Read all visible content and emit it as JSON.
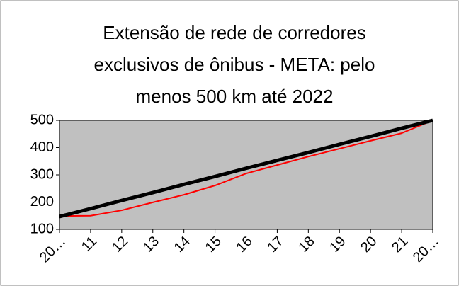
{
  "chart_data": {
    "type": "line",
    "title": [
      "Extensão de rede de corredores",
      "exclusivos de ônibus - META: pelo",
      "menos 500 km até 2022"
    ],
    "categories": [
      "20…",
      "11",
      "12",
      "13",
      "14",
      "15",
      "16",
      "17",
      "18",
      "19",
      "20",
      "21",
      "20…"
    ],
    "series": [
      {
        "color": "#ff0000",
        "values": [
          149,
          150,
          170,
          199,
          227,
          261,
          305,
          336,
          367,
          396,
          425,
          453,
          500
        ]
      },
      {
        "color": "#000000",
        "values": [
          147,
          176,
          206,
          235,
          265,
          294,
          324,
          353,
          382,
          412,
          441,
          471,
          500
        ]
      }
    ],
    "ylim": [
      100,
      500
    ],
    "yticks": [
      100,
      200,
      300,
      400,
      500
    ],
    "plot_background": "#c0c0c0"
  }
}
